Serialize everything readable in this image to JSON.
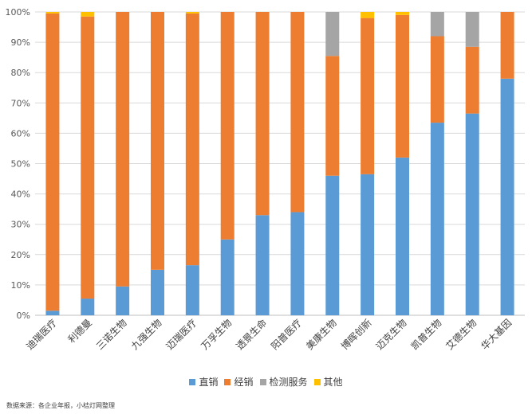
{
  "chart_data": {
    "type": "bar",
    "stacked": true,
    "categories": [
      "迪瑞医疗",
      "利德曼",
      "三诺生物",
      "九强生物",
      "迈瑞医疗",
      "万孚生物",
      "透景生命",
      "阳普医疗",
      "美康生物",
      "博晖创新",
      "迈克生物",
      "凯普生物",
      "艾德生物",
      "华大基因"
    ],
    "series": [
      {
        "name": "直销",
        "color": "#5b9bd5",
        "values": [
          1.5,
          5.5,
          9.5,
          15,
          16.5,
          25,
          33,
          34,
          46,
          46.5,
          52,
          63.5,
          66.5,
          78
        ]
      },
      {
        "name": "经销",
        "color": "#ed7d31",
        "values": [
          98,
          93,
          90.5,
          85,
          83,
          75,
          67,
          66,
          39.5,
          51.5,
          47,
          28.5,
          22,
          22
        ]
      },
      {
        "name": "检测服务",
        "color": "#a5a5a5",
        "values": [
          0,
          0,
          0,
          0,
          0,
          0,
          0,
          0,
          14.5,
          0,
          0,
          8,
          11.5,
          0
        ]
      },
      {
        "name": "其他",
        "color": "#ffc000",
        "values": [
          0.5,
          1.5,
          0,
          0,
          0.5,
          0,
          0,
          0,
          0,
          2,
          1,
          0,
          0,
          0
        ]
      }
    ],
    "yticks": [
      "0%",
      "10%",
      "20%",
      "30%",
      "40%",
      "50%",
      "60%",
      "70%",
      "80%",
      "90%",
      "100%"
    ],
    "ylim": [
      0,
      100
    ],
    "grid": true,
    "legend_position": "bottom"
  },
  "source_note": "数据来源：各企业年报，小桔灯网整理"
}
